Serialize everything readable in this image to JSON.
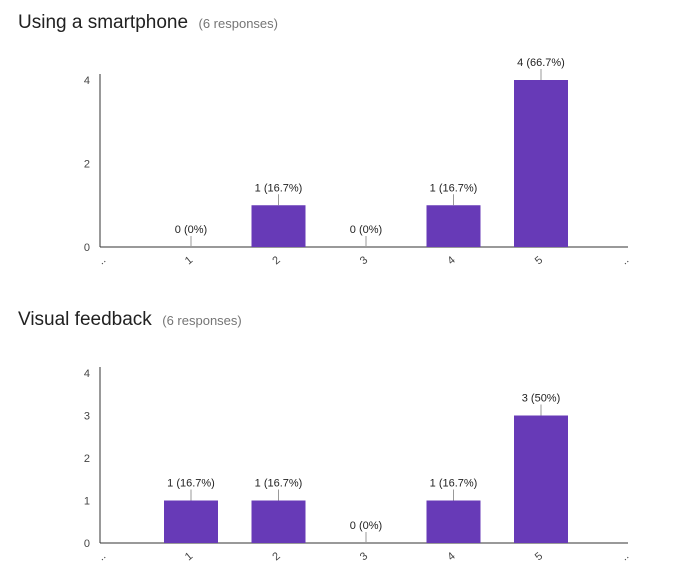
{
  "chart_data": [
    {
      "type": "bar",
      "title": "Using a smartphone",
      "subtitle": "(6 responses)",
      "categories": [
        "1",
        "2",
        "3",
        "4",
        "5"
      ],
      "edge_labels": [
        "..",
        ".."
      ],
      "values": [
        0,
        1,
        0,
        1,
        4
      ],
      "data_labels": [
        "0 (0%)",
        "1 (16.7%)",
        "0 (0%)",
        "1 (16.7%)",
        "4 (66.7%)"
      ],
      "yticks": [
        0,
        2,
        4
      ],
      "ylim": [
        0,
        4
      ],
      "grid": false,
      "color": "#673ab7"
    },
    {
      "type": "bar",
      "title": "Visual feedback",
      "subtitle": "(6 responses)",
      "categories": [
        "1",
        "2",
        "3",
        "4",
        "5"
      ],
      "edge_labels": [
        "..",
        ".."
      ],
      "values": [
        1,
        1,
        0,
        1,
        3
      ],
      "data_labels": [
        "1 (16.7%)",
        "1 (16.7%)",
        "0 (0%)",
        "1 (16.7%)",
        "3 (50%)"
      ],
      "yticks": [
        0,
        1,
        2,
        3,
        4
      ],
      "ylim": [
        0,
        4
      ],
      "grid": false,
      "color": "#673ab7"
    }
  ]
}
